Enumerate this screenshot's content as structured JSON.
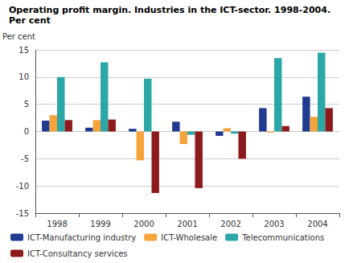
{
  "chart_data": {
    "type": "bar",
    "title": "Operating profit margin. Industries in the ICT-sector. 1998-2004.",
    "subtitle": "Per cent",
    "y_label": "Per cent",
    "categories": [
      "1998",
      "1999",
      "2000",
      "2001",
      "2002",
      "2003",
      "2004"
    ],
    "series": [
      {
        "name": "ICT-Manufacturing industry",
        "color": "#1f3a8f",
        "values": [
          2.0,
          0.7,
          0.5,
          1.8,
          -0.8,
          4.3,
          6.4
        ]
      },
      {
        "name": "ICT-Wholesale",
        "color": "#f5a33a",
        "values": [
          3.0,
          2.1,
          -5.3,
          -2.3,
          0.6,
          -0.2,
          2.7
        ]
      },
      {
        "name": "Telecommunications",
        "color": "#2aa7a6",
        "values": [
          10.0,
          12.7,
          9.7,
          -0.6,
          -0.4,
          13.5,
          14.5
        ]
      },
      {
        "name": "ICT-Consultancy services",
        "color": "#8e1b1b",
        "values": [
          2.1,
          2.2,
          -11.3,
          -10.4,
          -5.0,
          1.0,
          4.3
        ]
      }
    ],
    "ylim": [
      -15,
      15
    ],
    "yticks": [
      -15,
      -10,
      -5,
      0,
      5,
      10,
      15
    ],
    "grid": true,
    "legend": "bottom"
  }
}
